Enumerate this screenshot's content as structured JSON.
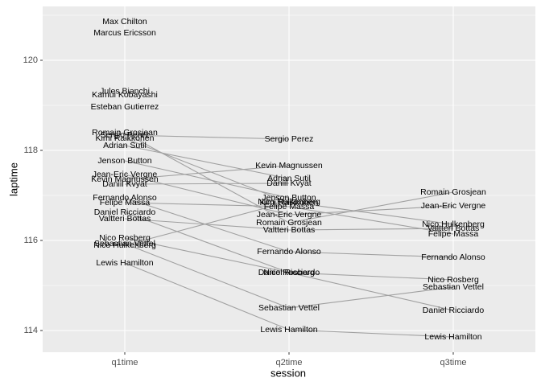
{
  "chart_data": {
    "type": "slope",
    "categories": [
      "q1time",
      "q2time",
      "q3time"
    ],
    "x_label": "session",
    "y_label": "laptime",
    "ylim": [
      113.518,
      121.196
    ],
    "yticks": [
      114,
      116,
      118,
      120
    ],
    "minor_yticks": [
      115,
      117,
      119,
      121
    ],
    "grid": true,
    "line_color": "#a0a0a0",
    "panel_color": "#ebebeb",
    "series": [
      {
        "name": "Lewis Hamilton",
        "values": [
          115.5,
          114.018,
          113.857
        ]
      },
      {
        "name": "Nico Rosberg",
        "values": [
          116.054,
          115.286,
          115.125
        ]
      },
      {
        "name": "Daniel Ricciardo",
        "values": [
          116.625,
          115.286,
          114.446
        ]
      },
      {
        "name": "Sebastian Vettel",
        "values": [
          115.929,
          114.5,
          114.964
        ]
      },
      {
        "name": "Fernando Alonso",
        "values": [
          116.946,
          115.75,
          115.625
        ]
      },
      {
        "name": "Felipe Massa",
        "values": [
          116.839,
          116.75,
          116.143
        ]
      },
      {
        "name": "Valtteri  Bottas",
        "values": [
          116.482,
          116.232,
          116.268
        ]
      },
      {
        "name": "Nico Hulkenberg",
        "values": [
          115.893,
          116.857,
          116.357
        ]
      },
      {
        "name": "Jean-Eric Vergne",
        "values": [
          117.464,
          116.571,
          116.768
        ]
      },
      {
        "name": "Romain Grosjean",
        "values": [
          118.393,
          116.393,
          117.071
        ]
      },
      {
        "name": "Kimi Raikkonen",
        "values": [
          118.268,
          116.839,
          null
        ]
      },
      {
        "name": "Sergio Perez",
        "values": [
          118.339,
          118.25,
          null
        ]
      },
      {
        "name": "Kevin Magnussen",
        "values": [
          117.357,
          117.661,
          null
        ]
      },
      {
        "name": "Adrian Sutil",
        "values": [
          118.107,
          117.375,
          null
        ]
      },
      {
        "name": "Daniil Kvyat",
        "values": [
          117.25,
          117.268,
          null
        ]
      },
      {
        "name": "Jenson Button",
        "values": [
          117.768,
          116.946,
          null
        ]
      },
      {
        "name": "Esteban Gutierrez",
        "values": [
          118.964,
          null,
          null
        ]
      },
      {
        "name": "Jules Bianchi",
        "values": [
          119.304,
          null,
          null
        ]
      },
      {
        "name": "Kamui Kobayashi",
        "values": [
          119.232,
          null,
          null
        ]
      },
      {
        "name": "Max Chilton",
        "values": [
          120.857,
          null,
          null
        ]
      },
      {
        "name": "Marcus Ericsson",
        "values": [
          120.607,
          null,
          null
        ]
      }
    ]
  }
}
